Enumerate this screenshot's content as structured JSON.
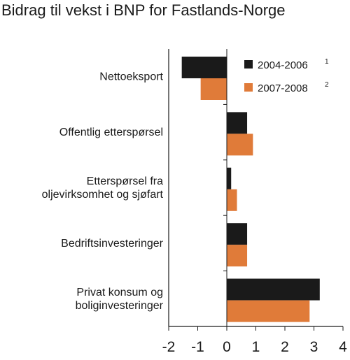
{
  "chart_data": {
    "type": "bar",
    "orientation": "horizontal",
    "title": "Bidrag til vekst i BNP for Fastlands-Norge",
    "categories": [
      "Nettoeksport",
      "Offentlig etterspørsel",
      "Etterspørsel fra oljevirksomhet og sjøfart",
      "Bedriftsinvesteringer",
      "Privat konsum og boliginvesteringer"
    ],
    "category_lines": [
      [
        "Nettoeksport"
      ],
      [
        "Offentlig etterspørsel"
      ],
      [
        "Etterspørsel fra",
        "oljevirksomhet og sjøfart"
      ],
      [
        "Bedriftsinvesteringer"
      ],
      [
        "Privat konsum og",
        "boliginvesteringer"
      ]
    ],
    "series": [
      {
        "name": "2004-2006",
        "superscript": "1",
        "color": "#1a1a1a",
        "values": [
          -1.55,
          0.7,
          0.15,
          0.7,
          3.2
        ]
      },
      {
        "name": "2007-2008",
        "superscript": "2",
        "color": "#e07b39",
        "values": [
          -0.9,
          0.9,
          0.35,
          0.7,
          2.85
        ]
      }
    ],
    "xlim": [
      -2,
      4
    ],
    "xticks": [
      -2,
      -1,
      0,
      1,
      2,
      3,
      4
    ],
    "legend_position": "top-right",
    "grid": false
  }
}
